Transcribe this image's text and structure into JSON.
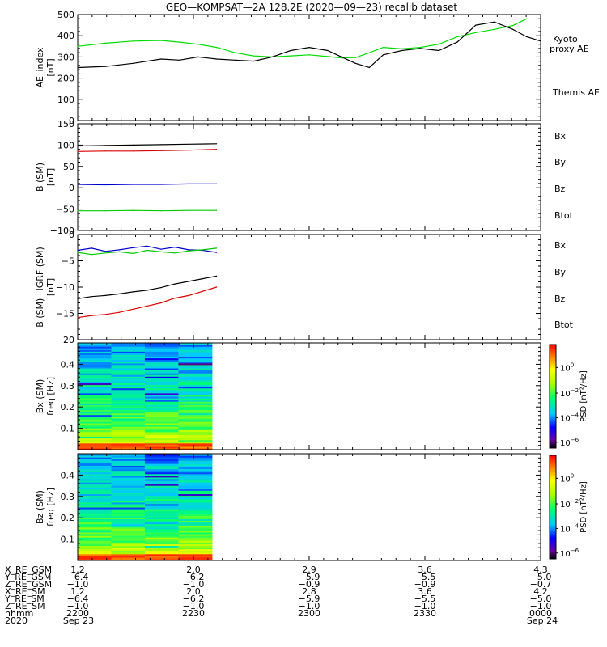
{
  "title": "GEO—KOMPSAT—2A 128.2E (2020—09—23) recalib dataset",
  "chart_data": [
    {
      "type": "line",
      "ylabel": [
        "AE_index",
        "[nT]"
      ],
      "ylim": [
        0,
        500
      ],
      "yticks": [
        0,
        100,
        200,
        300,
        400,
        500
      ],
      "ytick_labels": [
        "0",
        "100",
        "200",
        "300",
        "400",
        "500"
      ],
      "x": [
        0.0,
        0.06,
        0.12,
        0.18,
        0.22,
        0.26,
        0.3,
        0.34,
        0.38,
        0.42,
        0.46,
        0.5,
        0.54,
        0.57,
        0.6,
        0.63,
        0.66,
        0.7,
        0.74,
        0.78,
        0.82,
        0.86,
        0.9,
        0.94,
        0.97,
        1.0
      ],
      "series": [
        {
          "name": "Kyoto proxy AE",
          "color": "#00dd00",
          "values": [
            350,
            365,
            375,
            378,
            370,
            360,
            345,
            320,
            305,
            300,
            305,
            310,
            302,
            295,
            297,
            320,
            345,
            338,
            345,
            360,
            395,
            415,
            430,
            448,
            480,
            null
          ]
        },
        {
          "name": "Themis AE",
          "color": "#000000",
          "values": [
            250,
            255,
            270,
            290,
            285,
            300,
            290,
            285,
            280,
            300,
            330,
            345,
            330,
            300,
            270,
            250,
            310,
            330,
            340,
            330,
            370,
            450,
            465,
            430,
            395,
            375
          ]
        }
      ],
      "labels": [
        {
          "text": "Kyoto",
          "color": "#00dd00"
        },
        {
          "text": "proxy AE",
          "color": "#00dd00"
        },
        {
          "text": "Themis AE",
          "color": "#000000"
        }
      ]
    },
    {
      "type": "line",
      "ylabel": [
        "B (SM)",
        "[nT]"
      ],
      "ylim": [
        -100,
        150
      ],
      "yticks": [
        -100,
        -50,
        0,
        50,
        100,
        150
      ],
      "ytick_labels": [
        "−100",
        "−50",
        "0",
        "50",
        "100",
        "150"
      ],
      "x": [
        0.0,
        0.06,
        0.12,
        0.18,
        0.24,
        0.3
      ],
      "series": [
        {
          "name": "Bx",
          "color": "#0000cc",
          "values": [
            8,
            7,
            8,
            8,
            9,
            9
          ]
        },
        {
          "name": "By",
          "color": "#00cc00",
          "values": [
            -54,
            -54,
            -53,
            -54,
            -53,
            -53
          ]
        },
        {
          "name": "Bz",
          "color": "#dd0000",
          "values": [
            85,
            86,
            86,
            87,
            88,
            90
          ]
        },
        {
          "name": "Btot",
          "color": "#000000",
          "values": [
            98,
            99,
            100,
            101,
            102,
            103
          ]
        }
      ],
      "labels": [
        {
          "text": "Bx",
          "color": "#0000cc"
        },
        {
          "text": "By",
          "color": "#00cc00"
        },
        {
          "text": "Bz",
          "color": "#dd0000"
        },
        {
          "text": "Btot",
          "color": "#000000"
        }
      ]
    },
    {
      "type": "line",
      "ylabel": [
        "B (SM)−IGRF (SM)",
        "[nT]"
      ],
      "ylim": [
        -20,
        0
      ],
      "yticks": [
        -20,
        -15,
        -10,
        -5,
        0
      ],
      "ytick_labels": [
        "−20",
        "−15",
        "−10",
        "−5",
        "0"
      ],
      "x": [
        0.0,
        0.03,
        0.06,
        0.09,
        0.12,
        0.15,
        0.18,
        0.21,
        0.24,
        0.27,
        0.3
      ],
      "series": [
        {
          "name": "Bx",
          "color": "#0000cc",
          "values": [
            -3.0,
            -2.6,
            -3.2,
            -2.9,
            -2.5,
            -2.2,
            -2.8,
            -2.4,
            -2.9,
            -3.0,
            -3.4
          ]
        },
        {
          "name": "By",
          "color": "#00cc00",
          "values": [
            -3.4,
            -3.8,
            -3.5,
            -3.3,
            -3.6,
            -3.0,
            -3.3,
            -3.5,
            -3.1,
            -2.9,
            -2.6
          ]
        },
        {
          "name": "Bz",
          "color": "#dd0000",
          "values": [
            -15.8,
            -15.4,
            -15.2,
            -14.8,
            -14.2,
            -13.6,
            -13.0,
            -12.1,
            -11.6,
            -10.8,
            -10.0
          ]
        },
        {
          "name": "Btot",
          "color": "#000000",
          "values": [
            -12.2,
            -11.8,
            -11.6,
            -11.3,
            -10.9,
            -10.6,
            -10.1,
            -9.4,
            -8.9,
            -8.4,
            -7.9
          ]
        }
      ],
      "labels": [
        {
          "text": "Bx",
          "color": "#0000cc"
        },
        {
          "text": "By",
          "color": "#00cc00"
        },
        {
          "text": "Bz",
          "color": "#dd0000"
        },
        {
          "text": "Btot",
          "color": "#000000"
        }
      ]
    },
    {
      "type": "heatmap",
      "ylabel": [
        "Bx (SM)",
        "freq [Hz]"
      ],
      "ylim": [
        0,
        0.5
      ],
      "yticks": [
        0.1,
        0.2,
        0.3,
        0.4
      ],
      "ytick_labels": [
        "0.1",
        "0.2",
        "0.3",
        "0.4"
      ],
      "xlim_data": [
        0,
        0.29
      ],
      "colorbar": {
        "label": "PSD [nT²/Hz]",
        "ticks": [
          {
            "base": "10",
            "exp": "0"
          },
          {
            "base": "10",
            "exp": "−2"
          },
          {
            "base": "10",
            "exp": "−4"
          },
          {
            "base": "10",
            "exp": "−6"
          }
        ]
      }
    },
    {
      "type": "heatmap",
      "ylabel": [
        "Bz (SM)",
        "freq [Hz]"
      ],
      "ylim": [
        0,
        0.5
      ],
      "yticks": [
        0.1,
        0.2,
        0.3,
        0.4
      ],
      "ytick_labels": [
        "0.1",
        "0.2",
        "0.3",
        "0.4"
      ],
      "xlim_data": [
        0,
        0.29
      ],
      "colorbar": {
        "label": "PSD [nT²/Hz]",
        "ticks": [
          {
            "base": "10",
            "exp": "0"
          },
          {
            "base": "10",
            "exp": "−2"
          },
          {
            "base": "10",
            "exp": "−4"
          },
          {
            "base": "10",
            "exp": "−6"
          }
        ]
      }
    }
  ],
  "footer": {
    "row_labels": [
      "X_RE_GSM",
      "Y_RE_GSM",
      "Z_RE_GSM",
      "X_RE_SM",
      "Y_RE_SM",
      "Z_RE_SM",
      "hhmm",
      "2020"
    ],
    "columns": [
      [
        "1.2",
        "−6.4",
        "−1.0",
        "1.2",
        "−6.4",
        "−1.0",
        "2200",
        "Sep 23"
      ],
      [
        "2.0",
        "−6.2",
        "−1.0",
        "2.0",
        "−6.2",
        "−1.0",
        "2230",
        ""
      ],
      [
        "2.9",
        "−5.9",
        "−0.9",
        "2.8",
        "−5.9",
        "−1.0",
        "2300",
        ""
      ],
      [
        "3.6",
        "−5.5",
        "−0.9",
        "3.6",
        "−5.5",
        "−1.0",
        "2330",
        ""
      ],
      [
        "4.3",
        "−5.0",
        "−0.7",
        "4.2",
        "−5.0",
        "−1.0",
        "0000",
        "Sep 24"
      ]
    ]
  }
}
